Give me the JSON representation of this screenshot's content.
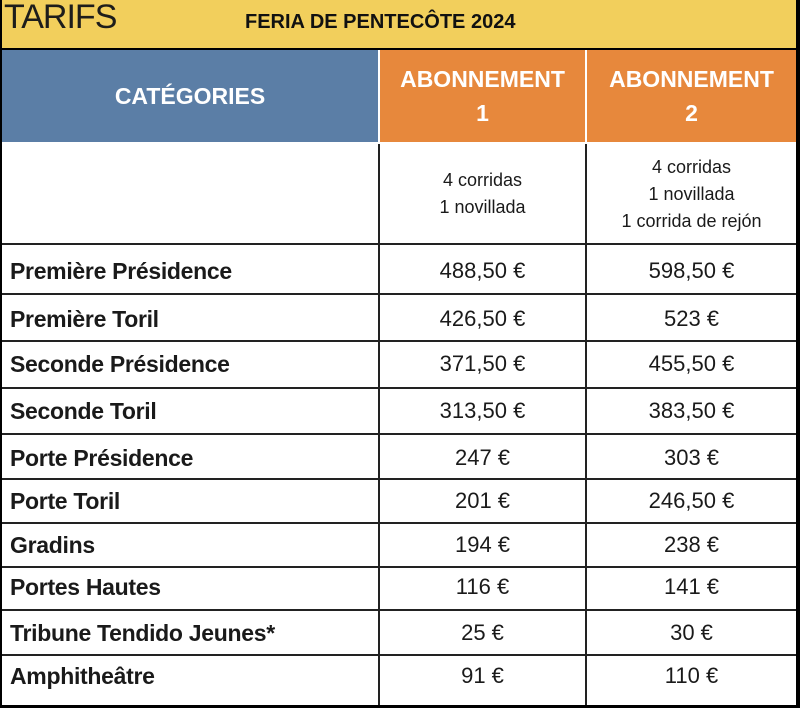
{
  "header": {
    "title": "TARIFS",
    "event": "FERIA DE PENTECÔTE 2024"
  },
  "table": {
    "col_categories": "CATÉGORIES",
    "abonnement1": {
      "line1": "ABONNEMENT",
      "line2": "1",
      "desc": [
        "4 corridas",
        "1 novillada"
      ]
    },
    "abonnement2": {
      "line1": "ABONNEMENT",
      "line2": "2",
      "desc": [
        "4 corridas",
        "1 novillada",
        "1 corrida de rejón"
      ]
    },
    "rows": [
      {
        "category": "Première Présidence",
        "price1": "488,50 €",
        "price2": "598,50 €"
      },
      {
        "category": "Première Toril",
        "price1": "426,50 €",
        "price2": "523 €"
      },
      {
        "category": "Seconde Présidence",
        "price1": "371,50 €",
        "price2": "455,50 €"
      },
      {
        "category": "Seconde Toril",
        "price1": "313,50 €",
        "price2": "383,50 €"
      },
      {
        "category": "Porte Présidence",
        "price1": "247 €",
        "price2": "303 €"
      },
      {
        "category": "Porte Toril",
        "price1": "201 €",
        "price2": "246,50 €"
      },
      {
        "category": "Gradins",
        "price1": "194 €",
        "price2": "238 €"
      },
      {
        "category": "Portes Hautes",
        "price1": "116 €",
        "price2": "141 €"
      },
      {
        "category": "Tribune Tendido Jeunes*",
        "price1": "25 €",
        "price2": "30 €"
      },
      {
        "category": "Amphitheâtre",
        "price1": "91 €",
        "price2": "110 €"
      }
    ]
  }
}
